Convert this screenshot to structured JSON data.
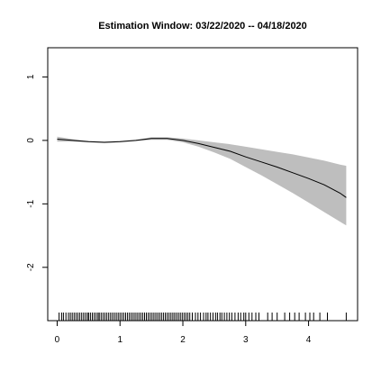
{
  "chart_data": {
    "type": "line",
    "title": "Estimation Window: 03/22/2020 -- 04/18/2020",
    "xlabel": "",
    "ylabel": "",
    "xlim": [
      -0.15,
      4.78
    ],
    "ylim": [
      -2.84,
      1.46
    ],
    "x_ticks": [
      0,
      1,
      2,
      3,
      4
    ],
    "y_ticks": [
      -2,
      -1,
      0,
      1
    ],
    "x_tick_labels": [
      "0",
      "1",
      "2",
      "3",
      "4"
    ],
    "y_tick_labels": [
      "-2",
      "-1",
      "0",
      "1"
    ],
    "grid": false,
    "series": [
      {
        "x": [
          0.0,
          0.25,
          0.5,
          0.75,
          1.0,
          1.25,
          1.5,
          1.75,
          2.0,
          2.25,
          2.5,
          2.75,
          3.0,
          3.25,
          3.5,
          3.75,
          4.0,
          4.25,
          4.5,
          4.6
        ],
        "y": [
          0.02,
          0.0,
          -0.02,
          -0.03,
          -0.02,
          0.0,
          0.03,
          0.03,
          0.0,
          -0.05,
          -0.11,
          -0.17,
          -0.26,
          -0.34,
          -0.42,
          -0.51,
          -0.6,
          -0.7,
          -0.83,
          -0.9
        ],
        "lower": [
          -0.02,
          -0.02,
          -0.03,
          -0.04,
          -0.03,
          -0.01,
          0.01,
          0.01,
          -0.03,
          -0.1,
          -0.19,
          -0.29,
          -0.42,
          -0.55,
          -0.69,
          -0.83,
          -0.98,
          -1.13,
          -1.28,
          -1.34
        ],
        "upper": [
          0.06,
          0.02,
          -0.01,
          -0.02,
          -0.01,
          0.01,
          0.05,
          0.05,
          0.03,
          0.0,
          -0.03,
          -0.06,
          -0.1,
          -0.14,
          -0.18,
          -0.22,
          -0.27,
          -0.32,
          -0.38,
          -0.4
        ]
      }
    ],
    "colors": {
      "line": "#000000",
      "band": "#bebebe",
      "axis": "#000000"
    },
    "rug": [
      0.03,
      0.07,
      0.1,
      0.14,
      0.18,
      0.21,
      0.24,
      0.27,
      0.3,
      0.33,
      0.36,
      0.39,
      0.42,
      0.45,
      0.48,
      0.5,
      0.53,
      0.56,
      0.59,
      0.62,
      0.65,
      0.67,
      0.7,
      0.73,
      0.76,
      0.79,
      0.82,
      0.85,
      0.88,
      0.91,
      0.94,
      0.97,
      1.0,
      1.03,
      1.06,
      1.09,
      1.12,
      1.15,
      1.18,
      1.21,
      1.24,
      1.27,
      1.3,
      1.33,
      1.36,
      1.39,
      1.42,
      1.45,
      1.48,
      1.51,
      1.54,
      1.57,
      1.6,
      1.63,
      1.66,
      1.69,
      1.72,
      1.75,
      1.78,
      1.81,
      1.84,
      1.87,
      1.9,
      1.93,
      1.96,
      1.99,
      2.02,
      2.05,
      2.08,
      2.11,
      2.15,
      2.2,
      2.24,
      2.28,
      2.33,
      2.37,
      2.4,
      2.44,
      2.48,
      2.52,
      2.55,
      2.59,
      2.62,
      2.66,
      2.7,
      2.74,
      2.78,
      2.83,
      2.88,
      2.92,
      2.97,
      3.0,
      3.05,
      3.1,
      3.16,
      3.21,
      3.35,
      3.42,
      3.5,
      3.62,
      3.7,
      3.78,
      3.85,
      3.95,
      4.02,
      4.08,
      4.18,
      4.3,
      4.6
    ]
  }
}
